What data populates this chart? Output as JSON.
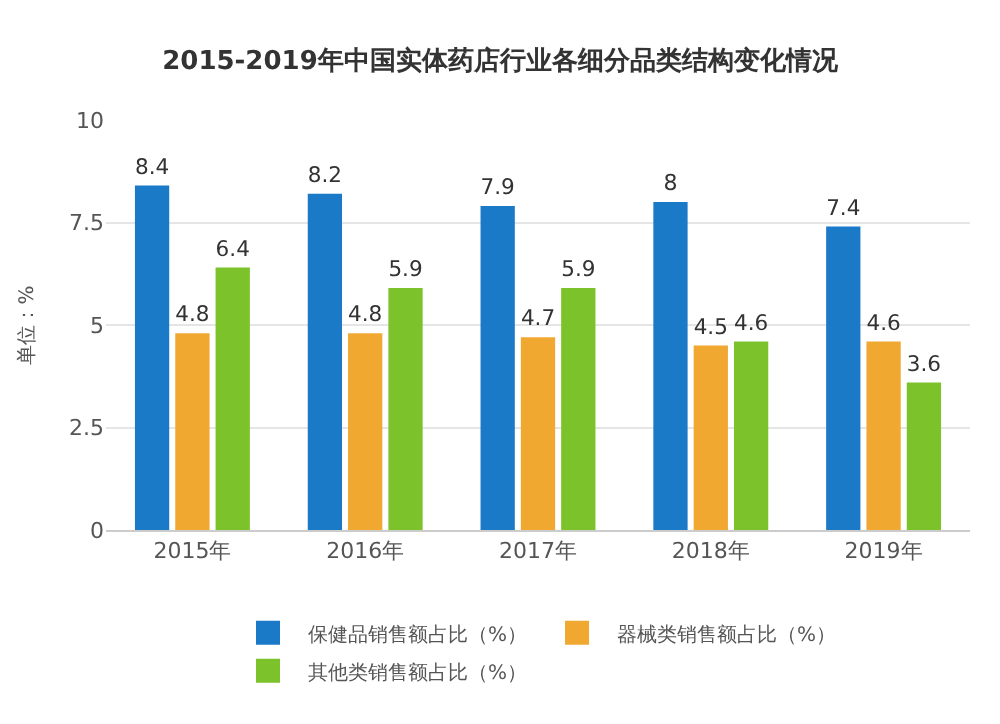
{
  "chart_data": {
    "type": "bar",
    "title": "2015-2019年中国实体药店行业各细分品类结构变化情况",
    "ylabel": "单位：%",
    "categories": [
      "2015年",
      "2016年",
      "2017年",
      "2018年",
      "2019年"
    ],
    "series": [
      {
        "name": "保健品销售额占比（%）",
        "color": "#1a7ac8",
        "values": [
          8.4,
          8.2,
          7.9,
          8,
          7.4
        ]
      },
      {
        "name": "器械类销售额占比（%）",
        "color": "#f0a830",
        "values": [
          4.8,
          4.8,
          4.7,
          4.5,
          4.6
        ]
      },
      {
        "name": "其他类销售额占比（%）",
        "color": "#7cc22a",
        "values": [
          6.4,
          5.9,
          5.9,
          4.6,
          3.6
        ]
      }
    ],
    "ylim": [
      0,
      10
    ],
    "yticks": [
      0,
      2.5,
      5,
      7.5,
      10
    ],
    "grid": "y",
    "legend": "bottom",
    "data_labels": true
  }
}
